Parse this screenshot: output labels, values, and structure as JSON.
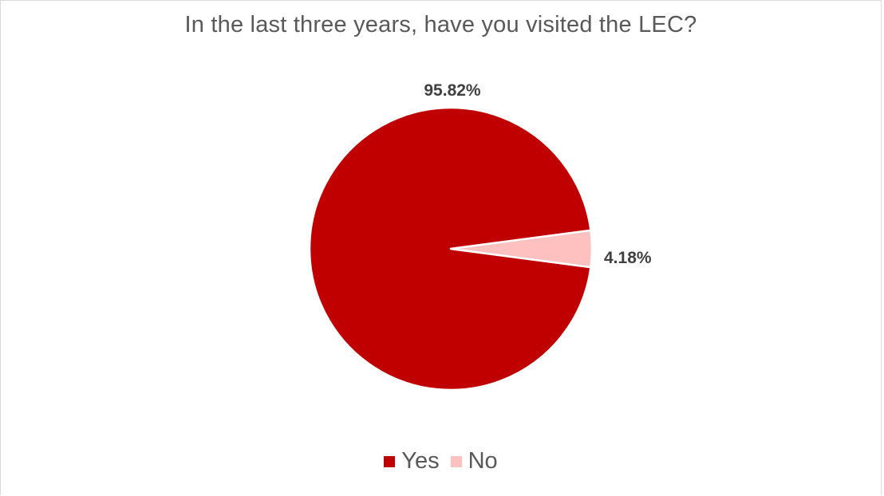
{
  "chart_data": {
    "type": "pie",
    "title": "In the last three years, have you visited the LEC?",
    "categories": [
      "Yes",
      "No"
    ],
    "values": [
      95.82,
      4.18
    ],
    "data_labels": [
      "95.82%",
      "4.18%"
    ],
    "colors": [
      "#c00000",
      "#ffc0c0"
    ],
    "legend_position": "bottom"
  },
  "legend": {
    "items": [
      {
        "label": "Yes",
        "color": "#c00000"
      },
      {
        "label": "No",
        "color": "#ffc0c0"
      }
    ]
  }
}
